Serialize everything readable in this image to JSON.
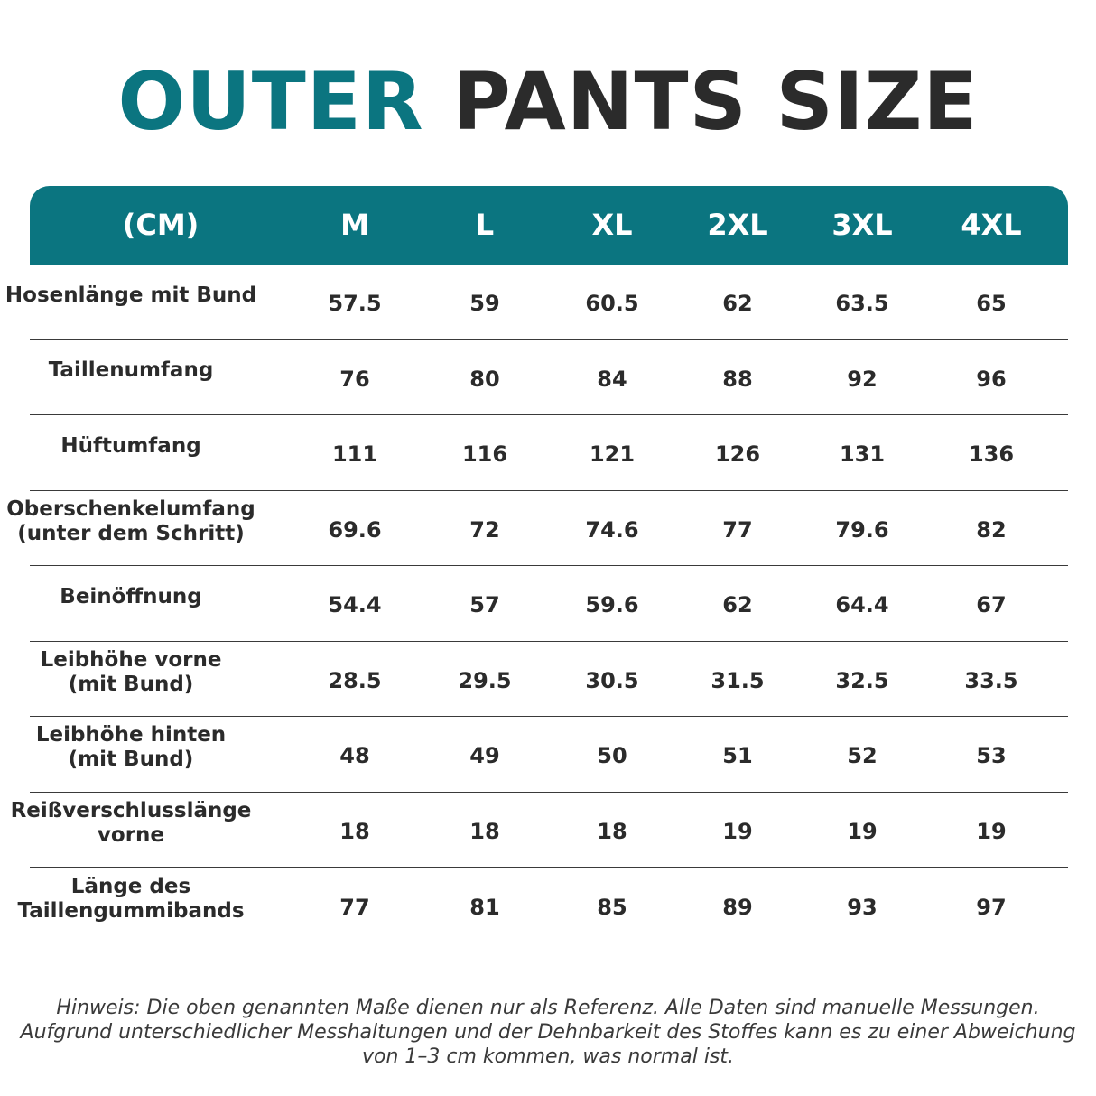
{
  "title": {
    "part1": "OUTER",
    "part2": "PANTS SIZE"
  },
  "table": {
    "unit": "(CM)",
    "sizes": [
      "M",
      "L",
      "XL",
      "2XL",
      "3XL",
      "4XL"
    ],
    "rows": [
      {
        "label": "Hosenlänge mit Bund",
        "values": [
          "57.5",
          "59",
          "60.5",
          "62",
          "63.5",
          "65"
        ]
      },
      {
        "label": "Taillenumfang",
        "values": [
          "76",
          "80",
          "84",
          "88",
          "92",
          "96"
        ]
      },
      {
        "label": "Hüftumfang",
        "values": [
          "111",
          "116",
          "121",
          "126",
          "131",
          "136"
        ]
      },
      {
        "label": "Oberschenkelumfang\n(unter dem Schritt)",
        "values": [
          "69.6",
          "72",
          "74.6",
          "77",
          "79.6",
          "82"
        ]
      },
      {
        "label": "Beinöffnung",
        "values": [
          "54.4",
          "57",
          "59.6",
          "62",
          "64.4",
          "67"
        ]
      },
      {
        "label": "Leibhöhe vorne\n(mit Bund)",
        "values": [
          "28.5",
          "29.5",
          "30.5",
          "31.5",
          "32.5",
          "33.5"
        ]
      },
      {
        "label": "Leibhöhe hinten\n(mit Bund)",
        "values": [
          "48",
          "49",
          "50",
          "51",
          "52",
          "53"
        ]
      },
      {
        "label": "Reißverschlusslänge\nvorne",
        "values": [
          "18",
          "18",
          "18",
          "19",
          "19",
          "19"
        ]
      },
      {
        "label": "Länge des\nTaillengummibands",
        "values": [
          "77",
          "81",
          "85",
          "89",
          "93",
          "97"
        ]
      }
    ]
  },
  "note": "Hinweis: Die oben genannten Maße dienen nur als Referenz. Alle Daten sind manuelle Messungen. Aufgrund unterschiedlicher Messhaltungen und der Dehnbarkeit des Stoffes kann es zu einer Abweichung von 1–3 cm kommen, was normal ist.",
  "colors": {
    "accent": "#0b7580",
    "text": "#2b2b2b"
  }
}
